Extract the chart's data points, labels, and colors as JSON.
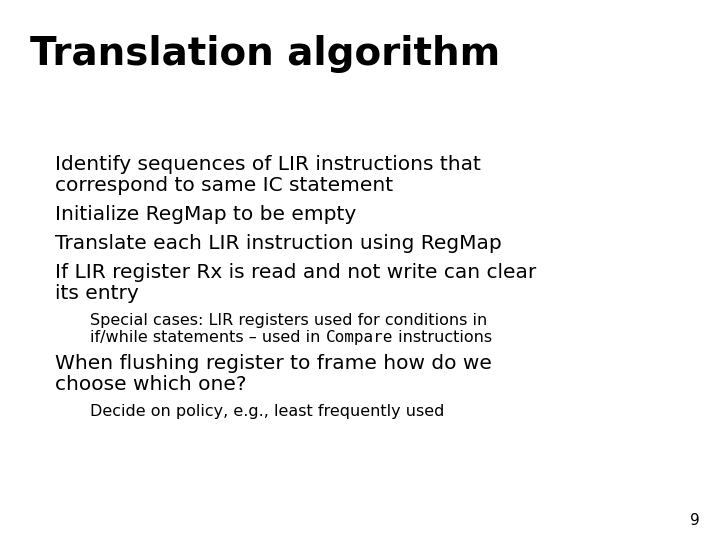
{
  "title": "Translation algorithm",
  "title_color": "#000000",
  "title_fontsize": 28,
  "background_color": "#ffffff",
  "bullet_color": "#1a1aaa",
  "sub_bullet_color": "#cc0000",
  "text_color": "#000000",
  "page_number": "9",
  "fontsize_l1": 14.5,
  "fontsize_l2": 11.5,
  "items": [
    {
      "level": 1,
      "lines": [
        "Identify sequences of LIR instructions that",
        "correspond to same IC statement"
      ]
    },
    {
      "level": 1,
      "lines": [
        "Initialize RegMap to be empty"
      ]
    },
    {
      "level": 1,
      "lines": [
        "Translate each LIR instruction using RegMap"
      ]
    },
    {
      "level": 1,
      "lines": [
        "If LIR register Rx is read and not write can clear",
        "its entry"
      ]
    },
    {
      "level": 2,
      "lines": [
        [
          {
            "text": "Special cases: LIR registers used for conditions in",
            "mono": false
          }
        ],
        [
          {
            "text": "if/while statements – used in ",
            "mono": false
          },
          {
            "text": "Compare",
            "mono": true
          },
          {
            "text": " instructions",
            "mono": false
          }
        ]
      ]
    },
    {
      "level": 1,
      "lines": [
        "When flushing register to frame how do we",
        "choose which one?"
      ]
    },
    {
      "level": 2,
      "lines": [
        [
          {
            "text": "Decide on policy, e.g., least frequently used",
            "mono": false
          }
        ]
      ]
    }
  ]
}
